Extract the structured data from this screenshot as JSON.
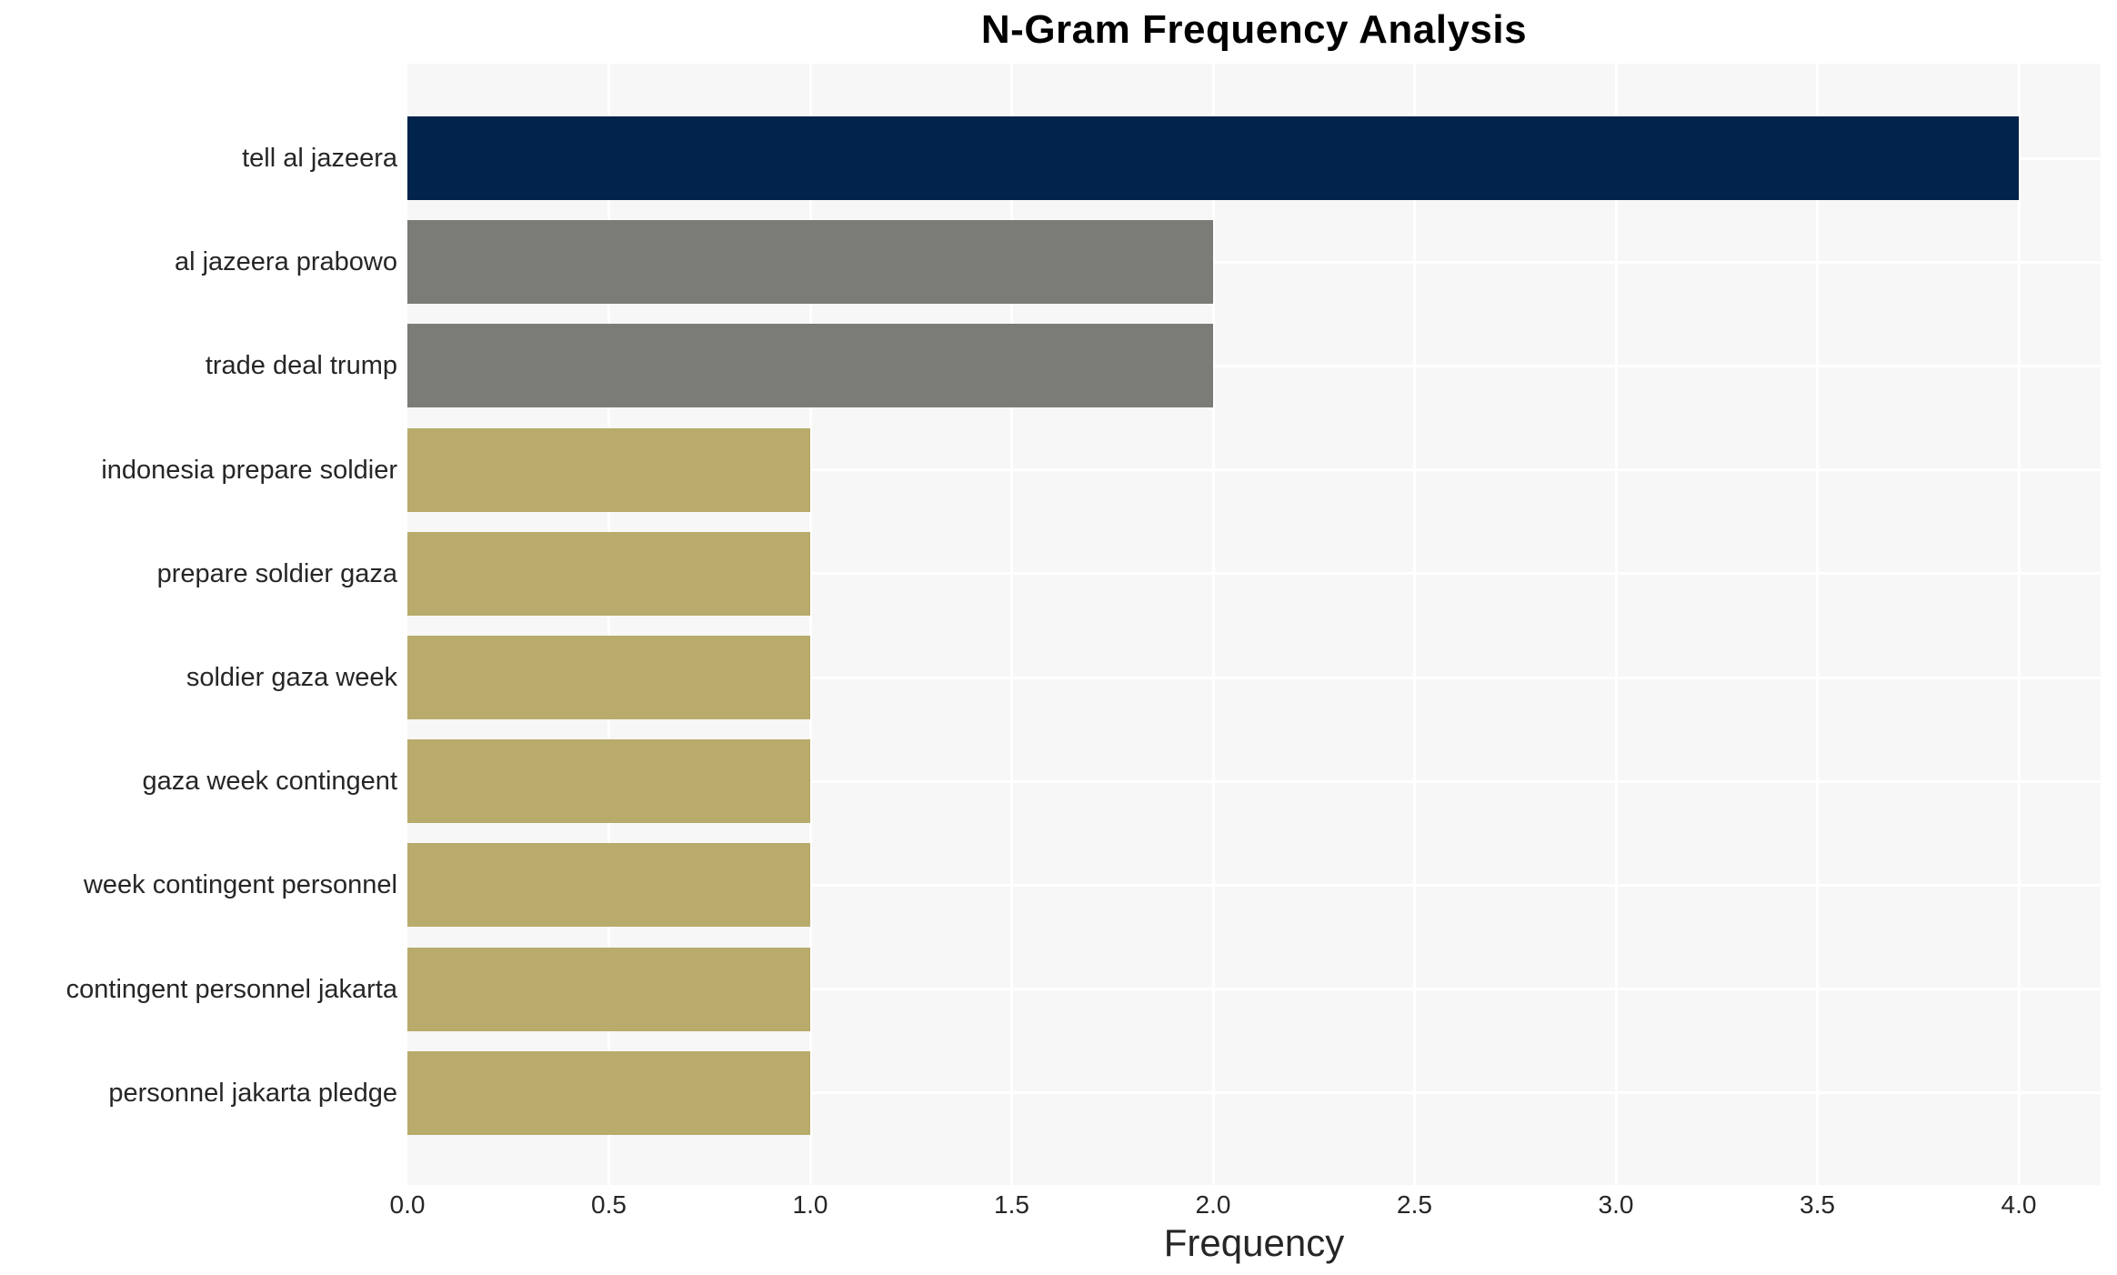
{
  "title": "N-Gram Frequency Analysis",
  "chart_data": {
    "type": "bar",
    "orientation": "horizontal",
    "title": "N-Gram Frequency Analysis",
    "xlabel": "Frequency",
    "ylabel": "",
    "categories": [
      "tell al jazeera",
      "al jazeera prabowo",
      "trade deal trump",
      "indonesia prepare soldier",
      "prepare soldier gaza",
      "soldier gaza week",
      "gaza week contingent",
      "week contingent personnel",
      "contingent personnel jakarta",
      "personnel jakarta pledge"
    ],
    "values": [
      4,
      2,
      2,
      1,
      1,
      1,
      1,
      1,
      1,
      1
    ],
    "bar_colors": [
      "#02234C",
      "#7B7B78",
      "#7B7B78",
      "#B8AB6B",
      "#B8AB6B",
      "#B8AB6B",
      "#B8AB6B",
      "#B8AB6B",
      "#B8AB6B",
      "#B8AB6B"
    ],
    "xlim": [
      0.0,
      4.2
    ],
    "xticks": [
      0.0,
      0.5,
      1.0,
      1.5,
      2.0,
      2.5,
      3.0,
      3.5,
      4.0
    ],
    "xtick_labels": [
      "0.0",
      "0.5",
      "1.0",
      "1.5",
      "2.0",
      "2.5",
      "3.0",
      "3.5",
      "4.0"
    ],
    "grid": true,
    "legend": false,
    "plot_bg_color": "#F7F7F7",
    "grid_color": "#FFFFFF"
  }
}
